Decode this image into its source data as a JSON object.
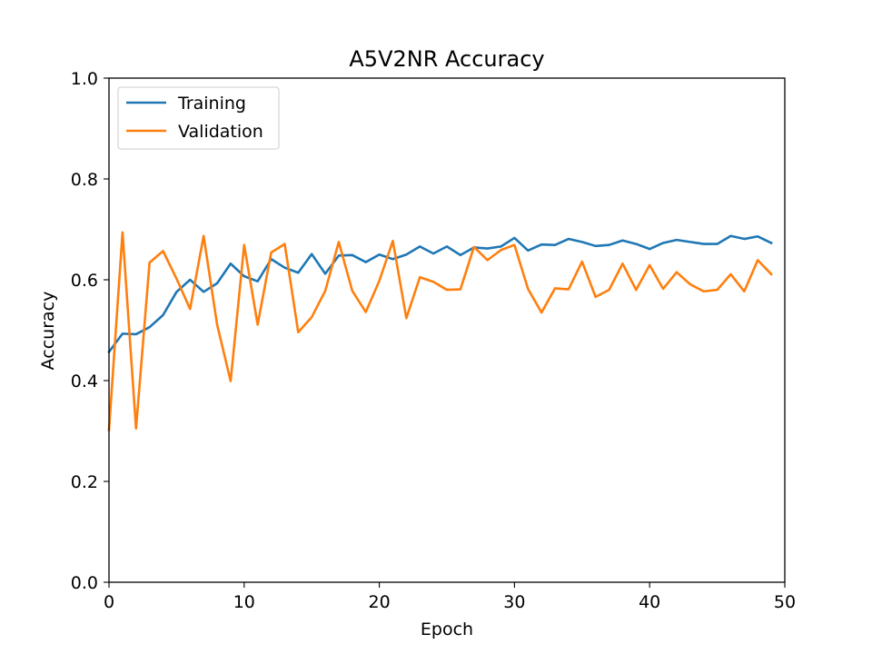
{
  "chart_data": {
    "type": "line",
    "title": "A5V2NR Accuracy",
    "xlabel": "Epoch",
    "ylabel": "Accuracy",
    "xlim": [
      0,
      50
    ],
    "ylim": [
      0,
      1
    ],
    "xticks": [
      0,
      10,
      20,
      30,
      40,
      50
    ],
    "xtick_labels": [
      "0",
      "10",
      "20",
      "30",
      "40",
      "50"
    ],
    "yticks": [
      0,
      0.2,
      0.4,
      0.6,
      0.8,
      1.0
    ],
    "ytick_labels": [
      "0.0",
      "0.2",
      "0.4",
      "0.6",
      "0.8",
      "1.0"
    ],
    "grid": false,
    "legend_position": "upper-left",
    "x": [
      0,
      1,
      2,
      3,
      4,
      5,
      6,
      7,
      8,
      9,
      10,
      11,
      12,
      13,
      14,
      15,
      16,
      17,
      18,
      19,
      20,
      21,
      22,
      23,
      24,
      25,
      26,
      27,
      28,
      29,
      30,
      31,
      32,
      33,
      34,
      35,
      36,
      37,
      38,
      39,
      40,
      41,
      42,
      43,
      44,
      45,
      46,
      47,
      48,
      49
    ],
    "series": [
      {
        "name": "Training",
        "color": "#1f77b4",
        "values": [
          0.457,
          0.493,
          0.492,
          0.506,
          0.53,
          0.576,
          0.6,
          0.576,
          0.593,
          0.632,
          0.607,
          0.597,
          0.641,
          0.624,
          0.614,
          0.651,
          0.612,
          0.648,
          0.649,
          0.635,
          0.65,
          0.641,
          0.65,
          0.666,
          0.652,
          0.666,
          0.649,
          0.664,
          0.662,
          0.666,
          0.683,
          0.658,
          0.67,
          0.669,
          0.681,
          0.675,
          0.667,
          0.669,
          0.678,
          0.671,
          0.661,
          0.673,
          0.679,
          0.675,
          0.671,
          0.671,
          0.687,
          0.681,
          0.686,
          0.673
        ]
      },
      {
        "name": "Validation",
        "color": "#ff7f0e",
        "values": [
          0.302,
          0.694,
          0.305,
          0.634,
          0.657,
          0.602,
          0.542,
          0.687,
          0.511,
          0.399,
          0.669,
          0.511,
          0.654,
          0.671,
          0.496,
          0.526,
          0.578,
          0.675,
          0.578,
          0.536,
          0.598,
          0.677,
          0.524,
          0.605,
          0.596,
          0.58,
          0.581,
          0.665,
          0.639,
          0.659,
          0.669,
          0.582,
          0.535,
          0.583,
          0.581,
          0.636,
          0.566,
          0.58,
          0.632,
          0.58,
          0.629,
          0.582,
          0.615,
          0.591,
          0.577,
          0.58,
          0.611,
          0.577,
          0.639,
          0.611
        ]
      }
    ]
  }
}
